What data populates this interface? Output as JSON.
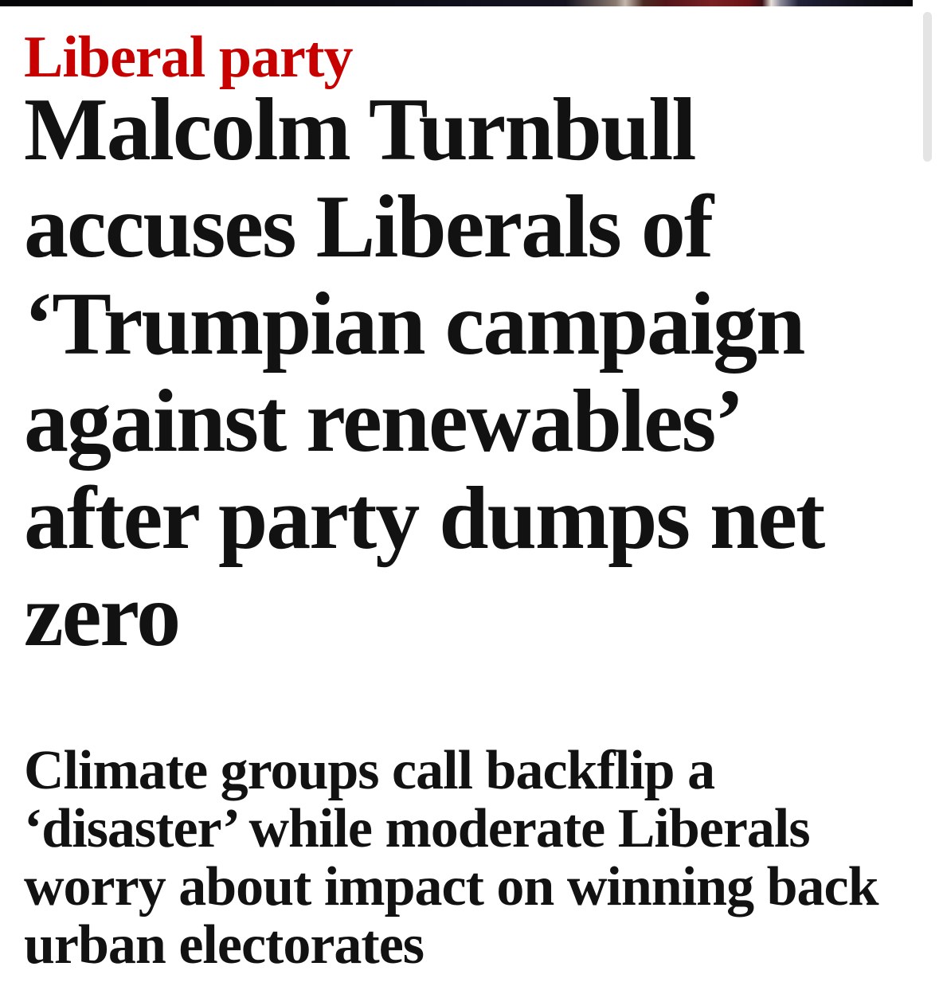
{
  "colors": {
    "accent_red": "#c70000",
    "text": "#121212",
    "background": "#ffffff",
    "scrollbar_thumb": "#e4e4e4"
  },
  "media_strip": {
    "gradient_colors": [
      "#050507",
      "#11111e",
      "#c4b8ae",
      "#7a2124",
      "#e8e2dc",
      "#22223a",
      "#07070b"
    ]
  },
  "article": {
    "kicker": "Liberal party",
    "headline": "Malcolm Turnbull\naccuses Liberals of\n‘Trumpian campaign\nagainst renewables’\nafter party dumps net\nzero",
    "standfirst": "Climate groups call backflip a\n‘disaster’ while moderate Liberals\nworry about impact on winning back\nurban electorates"
  }
}
